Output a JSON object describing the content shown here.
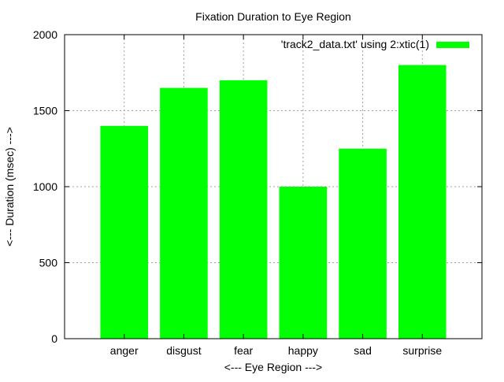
{
  "chart_data": {
    "type": "bar",
    "title": "Fixation Duration to Eye Region",
    "xlabel": "<--- Eye Region --->",
    "ylabel": "<--- Duration (msec) --->",
    "categories": [
      "anger",
      "disgust",
      "fear",
      "happy",
      "sad",
      "surprise"
    ],
    "series": [
      {
        "name": "'track2_data.txt' using 2:xtic(1)",
        "values": [
          1400,
          1650,
          1700,
          1000,
          1250,
          1800
        ],
        "color": "#00ff00"
      }
    ],
    "ylim": [
      0,
      2000
    ],
    "yticks": [
      0,
      500,
      1000,
      1500,
      2000
    ],
    "grid": true,
    "legend_position": "top-right"
  }
}
